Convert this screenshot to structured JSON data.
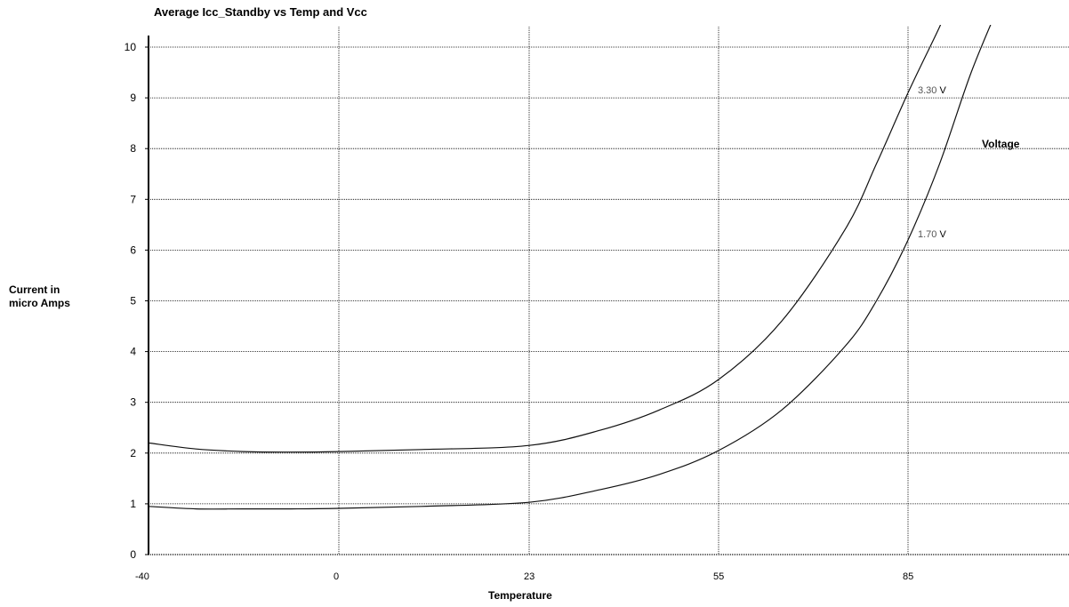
{
  "chart_data": {
    "type": "line",
    "title": "Average Icc_Standby vs Temp and Vcc",
    "xlabel": "Temperature",
    "ylabel": "Current in\nmicro Amps",
    "legend_title": "Voltage",
    "x_ticks": [
      -40,
      0,
      23,
      55,
      85
    ],
    "y_ticks": [
      0,
      1,
      2,
      3,
      4,
      5,
      6,
      7,
      8,
      9,
      10
    ],
    "ylim": [
      0,
      10.5
    ],
    "grid": true,
    "series": [
      {
        "name": "3.30",
        "unit": "V",
        "points": [
          [
            -40,
            2.2
          ],
          [
            -30,
            2.08
          ],
          [
            -20,
            2.03
          ],
          [
            -10,
            2.02
          ],
          [
            0,
            2.03
          ],
          [
            10,
            2.07
          ],
          [
            23,
            2.15
          ],
          [
            35,
            2.45
          ],
          [
            45,
            2.85
          ],
          [
            55,
            3.45
          ],
          [
            65,
            4.6
          ],
          [
            75,
            6.4
          ],
          [
            80,
            7.7
          ],
          [
            85,
            9.1
          ],
          [
            90,
            10.4
          ],
          [
            92,
            11.0
          ]
        ]
      },
      {
        "name": "1.70",
        "unit": "V",
        "points": [
          [
            -40,
            0.95
          ],
          [
            -30,
            0.9
          ],
          [
            -20,
            0.9
          ],
          [
            -10,
            0.9
          ],
          [
            0,
            0.91
          ],
          [
            10,
            0.95
          ],
          [
            23,
            1.03
          ],
          [
            35,
            1.28
          ],
          [
            45,
            1.58
          ],
          [
            55,
            2.05
          ],
          [
            65,
            2.85
          ],
          [
            75,
            4.1
          ],
          [
            80,
            5.0
          ],
          [
            85,
            6.2
          ],
          [
            90,
            7.7
          ],
          [
            95,
            9.5
          ],
          [
            100,
            11.0
          ]
        ]
      }
    ]
  }
}
